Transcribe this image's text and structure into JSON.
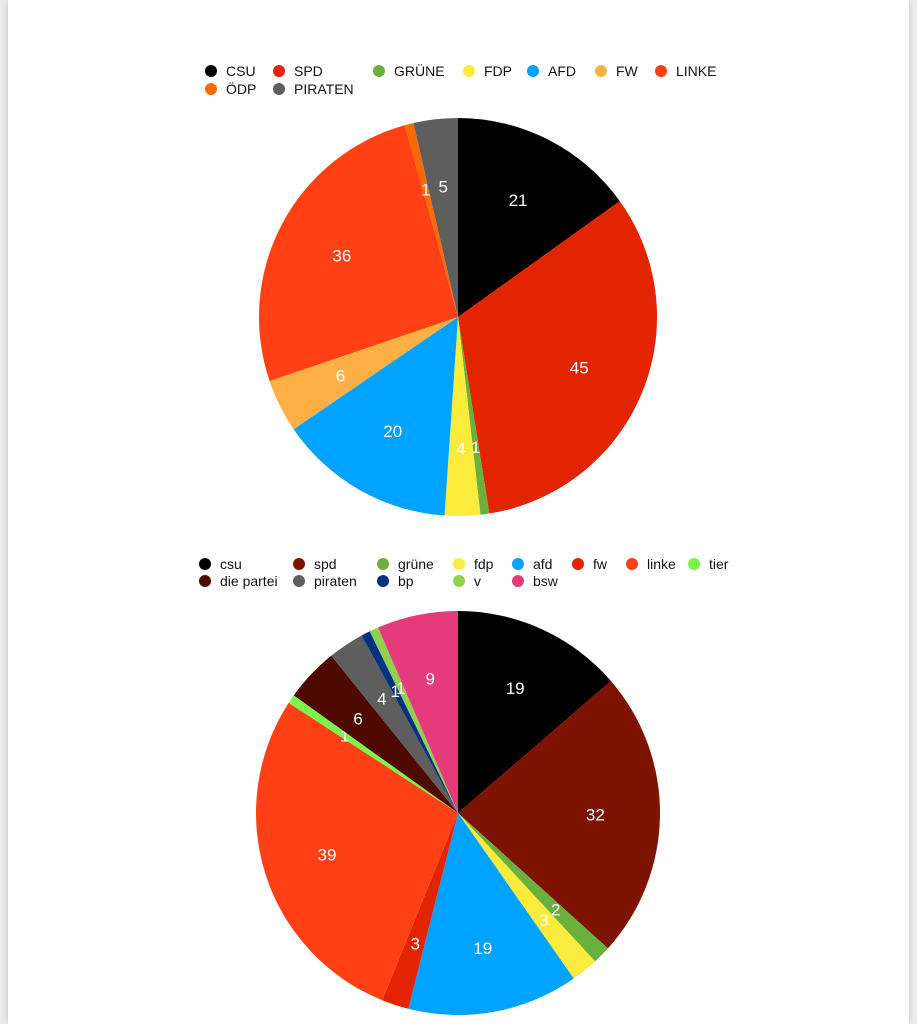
{
  "charts": [
    {
      "type": "pie",
      "title": "",
      "legend_placement": "top",
      "slices": [
        {
          "label": "CSU",
          "value": 21,
          "color": "#000000"
        },
        {
          "label": "SPD",
          "value": 45,
          "color": "#e32400"
        },
        {
          "label": "GRÜNE",
          "value": 1,
          "color": "#6ab03c"
        },
        {
          "label": "FDP",
          "value": 4,
          "color": "#faeb3c"
        },
        {
          "label": "AFD",
          "value": 20,
          "color": "#00a2ff"
        },
        {
          "label": "FW",
          "value": 6,
          "color": "#ffb044"
        },
        {
          "label": "LINKE",
          "value": 36,
          "color": "#ff4014"
        },
        {
          "label": "ÖDP",
          "value": 1,
          "color": "#ff6a00"
        },
        {
          "label": "PIRATEN",
          "value": 5,
          "color": "#5e5e5e"
        }
      ]
    },
    {
      "type": "pie",
      "title": "",
      "legend_placement": "top",
      "slices": [
        {
          "label": "csu",
          "value": 19,
          "color": "#000000"
        },
        {
          "label": "spd",
          "value": 32,
          "color": "#7d1300"
        },
        {
          "label": "grüne",
          "value": 2,
          "color": "#6ab03c"
        },
        {
          "label": "fdp",
          "value": 3,
          "color": "#faeb3c"
        },
        {
          "label": "afd",
          "value": 19,
          "color": "#00a2ff"
        },
        {
          "label": "fw",
          "value": 3,
          "color": "#e32400"
        },
        {
          "label": "linke",
          "value": 39,
          "color": "#ff4014"
        },
        {
          "label": "tier",
          "value": 1,
          "color": "#7cf54a"
        },
        {
          "label": "die partei",
          "value": 6,
          "color": "#4f0a00"
        },
        {
          "label": "piraten",
          "value": 4,
          "color": "#5e5e5e"
        },
        {
          "label": "bp",
          "value": 1,
          "color": "#00337f"
        },
        {
          "label": "v",
          "value": 1,
          "color": "#92d050"
        },
        {
          "label": "bsw",
          "value": 9,
          "color": "#e63b7a"
        }
      ]
    }
  ]
}
